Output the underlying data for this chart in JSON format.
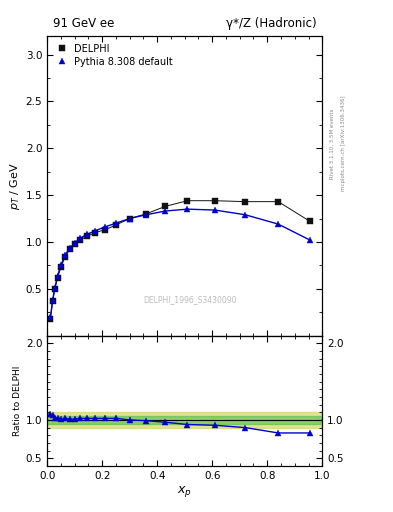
{
  "title_left": "91 GeV ee",
  "title_right": "γ*/Z (Hadronic)",
  "ylabel_main": "p_T / GeV",
  "ylabel_ratio": "Ratio to DELPHI",
  "xlabel": "x_p",
  "watermark": "DELPHI_1996_S3430090",
  "right_label_top": "Rivet 3.1.10, 3.5M events",
  "right_label_bot": "mcplots.cern.ch [arXiv:1306.3436]",
  "data_x": [
    0.012,
    0.02,
    0.028,
    0.038,
    0.05,
    0.065,
    0.082,
    0.1,
    0.12,
    0.145,
    0.175,
    0.21,
    0.25,
    0.3,
    0.36,
    0.43,
    0.51,
    0.61,
    0.72,
    0.84,
    0.955
  ],
  "data_y": [
    0.18,
    0.37,
    0.5,
    0.62,
    0.73,
    0.84,
    0.92,
    0.98,
    1.02,
    1.06,
    1.1,
    1.13,
    1.18,
    1.25,
    1.3,
    1.38,
    1.44,
    1.44,
    1.43,
    1.43,
    1.22
  ],
  "mc_x": [
    0.012,
    0.02,
    0.028,
    0.038,
    0.05,
    0.065,
    0.082,
    0.1,
    0.12,
    0.145,
    0.175,
    0.21,
    0.25,
    0.3,
    0.36,
    0.43,
    0.51,
    0.61,
    0.72,
    0.84,
    0.955
  ],
  "mc_y": [
    0.2,
    0.38,
    0.51,
    0.64,
    0.75,
    0.86,
    0.93,
    0.99,
    1.04,
    1.08,
    1.12,
    1.16,
    1.2,
    1.25,
    1.29,
    1.33,
    1.35,
    1.34,
    1.29,
    1.19,
    1.02
  ],
  "ratio_x": [
    0.012,
    0.02,
    0.028,
    0.038,
    0.05,
    0.065,
    0.082,
    0.1,
    0.12,
    0.145,
    0.175,
    0.21,
    0.25,
    0.3,
    0.36,
    0.43,
    0.51,
    0.61,
    0.72,
    0.84,
    0.955
  ],
  "ratio_y": [
    1.08,
    1.06,
    1.03,
    1.02,
    1.01,
    1.02,
    1.01,
    1.01,
    1.02,
    1.02,
    1.02,
    1.02,
    1.02,
    1.0,
    0.99,
    0.97,
    0.94,
    0.93,
    0.9,
    0.83,
    0.83
  ],
  "ylim_main": [
    0.0,
    3.2
  ],
  "ylim_ratio": [
    0.4,
    2.1
  ],
  "data_color": "#111111",
  "mc_color": "#0000cc",
  "band_green": "#44bb44",
  "band_yellow": "#cccc44",
  "band_green_alpha": 0.55,
  "band_yellow_alpha": 0.55,
  "band_inner": 0.05,
  "band_outer": 0.1,
  "main_yticks": [
    0.5,
    1.0,
    1.5,
    2.0,
    2.5,
    3.0
  ]
}
